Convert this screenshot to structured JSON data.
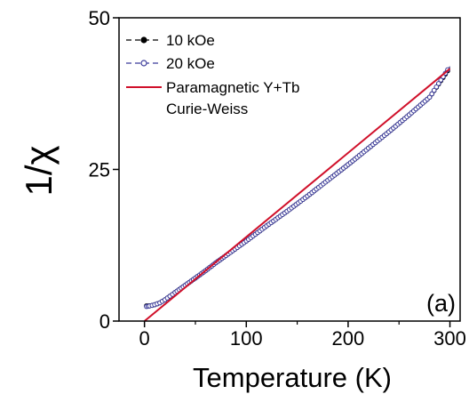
{
  "chart_data": {
    "type": "line",
    "panel_label": "(a)",
    "xlabel": "Temperature (K)",
    "ylabel": "1/χ",
    "xlim": [
      -25,
      310
    ],
    "ylim": [
      0,
      50
    ],
    "x_ticks": [
      0,
      100,
      200,
      300
    ],
    "y_ticks": [
      0,
      25,
      50
    ],
    "legend_position": "top-left",
    "series": [
      {
        "name": "10 kOe",
        "color": "#000000",
        "marker": "filled-circle",
        "x": [
          2,
          5,
          10,
          15,
          20,
          25,
          30,
          40,
          50,
          60,
          70,
          80,
          100,
          120,
          140,
          160,
          180,
          200,
          220,
          240,
          260,
          280,
          300
        ],
        "y": [
          2.5,
          2.5,
          2.7,
          3.0,
          3.5,
          4.1,
          4.7,
          5.9,
          7.1,
          8.3,
          9.6,
          10.8,
          13.2,
          15.7,
          18.1,
          20.6,
          23.2,
          25.8,
          28.5,
          31.2,
          34.0,
          36.9,
          41.8
        ]
      },
      {
        "name": "20 kOe",
        "color": "#3b3b9a",
        "marker": "open-circle",
        "x": [
          2,
          5,
          10,
          15,
          20,
          25,
          30,
          40,
          50,
          60,
          70,
          80,
          100,
          120,
          140,
          160,
          180,
          200,
          220,
          240,
          260,
          280,
          300
        ],
        "y": [
          2.4,
          2.5,
          2.7,
          3.0,
          3.5,
          4.1,
          4.7,
          5.9,
          7.1,
          8.3,
          9.6,
          10.8,
          13.2,
          15.7,
          18.1,
          20.6,
          23.2,
          25.8,
          28.5,
          31.2,
          34.0,
          36.9,
          42.0
        ]
      },
      {
        "name": "Paramagnetic Y+Tb",
        "name_line2": "Curie-Weiss",
        "color": "#d0102a",
        "marker": "none",
        "x": [
          0,
          300
        ],
        "y": [
          0,
          41.6
        ]
      }
    ]
  }
}
